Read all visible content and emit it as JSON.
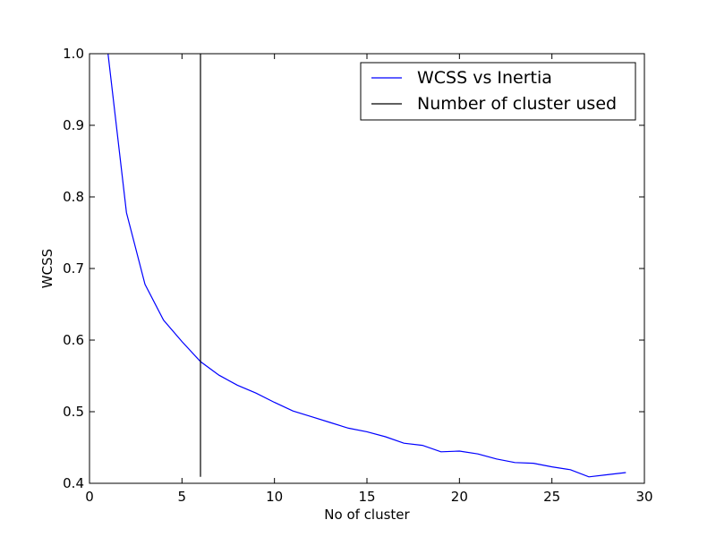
{
  "chart_data": {
    "type": "line",
    "title": "",
    "xlabel": "No of cluster",
    "ylabel": "WCSS",
    "xlim": [
      0,
      30
    ],
    "ylim": [
      0.4,
      1.0
    ],
    "xticks": [
      0,
      5,
      10,
      15,
      20,
      25,
      30
    ],
    "xtick_labels": [
      "0",
      "5",
      "10",
      "15",
      "20",
      "25",
      "30"
    ],
    "yticks": [
      0.4,
      0.5,
      0.6,
      0.7,
      0.8,
      0.9,
      1.0
    ],
    "ytick_labels": [
      "0.4",
      "0.5",
      "0.6",
      "0.7",
      "0.8",
      "0.9",
      "1.0"
    ],
    "grid": false,
    "legend_position": "top-right",
    "series": [
      {
        "name": "WCSS vs Inertia",
        "color": "#0000ff",
        "x": [
          1,
          2,
          3,
          4,
          5,
          6,
          7,
          8,
          9,
          10,
          11,
          12,
          13,
          14,
          15,
          16,
          17,
          18,
          19,
          20,
          21,
          22,
          23,
          24,
          25,
          26,
          27,
          28,
          29
        ],
        "y": [
          1.0,
          0.778,
          0.678,
          0.628,
          0.598,
          0.57,
          0.551,
          0.537,
          0.526,
          0.513,
          0.501,
          0.493,
          0.485,
          0.477,
          0.472,
          0.465,
          0.456,
          0.453,
          0.444,
          0.445,
          0.441,
          0.434,
          0.429,
          0.428,
          0.423,
          0.419,
          0.409,
          0.412,
          0.415
        ]
      },
      {
        "name": "Number of cluster used",
        "color": "#000000",
        "type": "vline",
        "x": 6,
        "y_range": [
          0.409,
          1.0
        ]
      }
    ]
  }
}
